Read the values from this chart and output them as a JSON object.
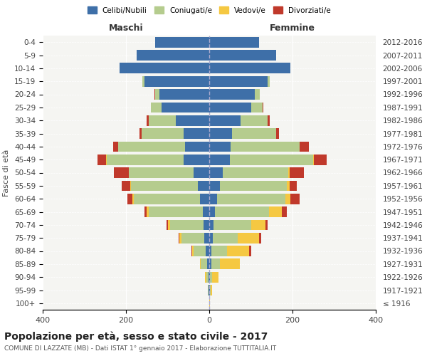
{
  "age_groups": [
    "100+",
    "95-99",
    "90-94",
    "85-89",
    "80-84",
    "75-79",
    "70-74",
    "65-69",
    "60-64",
    "55-59",
    "50-54",
    "45-49",
    "40-44",
    "35-39",
    "30-34",
    "25-29",
    "20-24",
    "15-19",
    "10-14",
    "5-9",
    "0-4"
  ],
  "birth_years": [
    "≤ 1916",
    "1917-1921",
    "1922-1926",
    "1927-1931",
    "1932-1936",
    "1937-1941",
    "1942-1946",
    "1947-1951",
    "1952-1956",
    "1957-1961",
    "1962-1966",
    "1967-1971",
    "1972-1976",
    "1977-1981",
    "1982-1986",
    "1987-1991",
    "1992-1996",
    "1997-2001",
    "2002-2006",
    "2007-2011",
    "2012-2016"
  ],
  "males": {
    "celibi": [
      0,
      1,
      2,
      5,
      8,
      12,
      14,
      16,
      22,
      28,
      38,
      62,
      58,
      62,
      80,
      115,
      120,
      155,
      215,
      175,
      130
    ],
    "coniugati": [
      0,
      2,
      5,
      15,
      30,
      55,
      80,
      130,
      160,
      160,
      155,
      185,
      160,
      100,
      65,
      25,
      10,
      5,
      0,
      0,
      0
    ],
    "vedovi": [
      0,
      1,
      3,
      3,
      3,
      5,
      6,
      5,
      3,
      2,
      1,
      1,
      0,
      0,
      0,
      0,
      0,
      0,
      0,
      0,
      0
    ],
    "divorziati": [
      0,
      0,
      0,
      0,
      1,
      2,
      3,
      5,
      12,
      20,
      35,
      20,
      12,
      5,
      5,
      0,
      2,
      0,
      0,
      0,
      0
    ]
  },
  "females": {
    "nubili": [
      0,
      1,
      2,
      5,
      5,
      8,
      10,
      14,
      18,
      25,
      32,
      50,
      52,
      55,
      75,
      100,
      110,
      140,
      195,
      160,
      120
    ],
    "coniugate": [
      0,
      2,
      5,
      20,
      38,
      60,
      90,
      130,
      165,
      162,
      158,
      200,
      165,
      105,
      65,
      28,
      12,
      5,
      0,
      0,
      0
    ],
    "vedove": [
      1,
      4,
      15,
      48,
      52,
      52,
      35,
      30,
      12,
      6,
      3,
      2,
      0,
      0,
      0,
      0,
      0,
      0,
      0,
      0,
      0
    ],
    "divorziate": [
      0,
      0,
      1,
      1,
      5,
      5,
      5,
      12,
      22,
      18,
      35,
      30,
      22,
      8,
      5,
      2,
      0,
      0,
      0,
      0,
      0
    ]
  },
  "colors": {
    "celibi": "#3e6fa8",
    "coniugati": "#b5cc8e",
    "vedovi": "#f5c842",
    "divorziati": "#c0392b"
  },
  "xlim": 400,
  "title": "Popolazione per età, sesso e stato civile - 2017",
  "subtitle": "COMUNE DI LAZZATE (MB) - Dati ISTAT 1° gennaio 2017 - Elaborazione TUTTITALIA.IT",
  "ylabel_left": "Fasce di età",
  "xlabel_left": "Maschi",
  "xlabel_right": "Femmine",
  "legend_labels": [
    "Celibi/Nubili",
    "Coniugati/e",
    "Vedovi/e",
    "Divorziati/e"
  ],
  "bg_color": "#f5f5f2",
  "plot_bg": "#f5f5f2"
}
